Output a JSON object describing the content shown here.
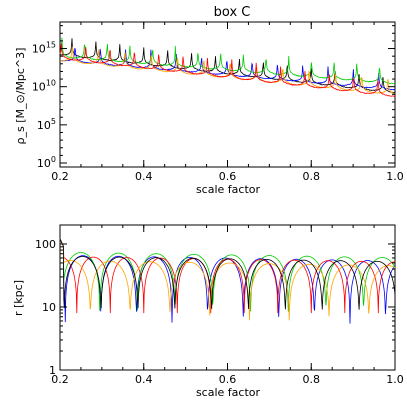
{
  "chart_data": [
    {
      "type": "line",
      "title": "box C",
      "xlabel": "scale factor",
      "ylabel": "ρ_s [M_⊙/Mpc^3]",
      "xlim": [
        0.2,
        1.0
      ],
      "ylim": [
        0.3,
        3e+18
      ],
      "yscale": "log",
      "xticks": [
        "0.2",
        "0.4",
        "0.6",
        "0.8",
        "1.0"
      ],
      "yticks": [
        {
          "base": "10",
          "exp": "0",
          "value": 1
        },
        {
          "base": "10",
          "exp": "5",
          "value": 100000
        },
        {
          "base": "10",
          "exp": "10",
          "value": 10000000000
        },
        {
          "base": "10",
          "exp": "15",
          "value": 1000000000000000
        }
      ],
      "series": [
        {
          "color": "#000000",
          "start": 1500000000000000.0,
          "end": 15000000000.0,
          "phase": 0.0,
          "dip_freq": 55,
          "dip_depth": 1.1
        },
        {
          "color": "#0000ff",
          "start": 220000000000000.0,
          "end": 30000000000.0,
          "phase": 0.3,
          "dip_freq": 52,
          "dip_depth": 1.0
        },
        {
          "color": "#00cc00",
          "start": 1000000000000000.0,
          "end": 300000000000.0,
          "phase": 0.7,
          "dip_freq": 58,
          "dip_depth": 1.2
        },
        {
          "color": "#ffa500",
          "start": 300000000000000.0,
          "end": 10000000000.0,
          "phase": 1.1,
          "dip_freq": 50,
          "dip_depth": 1.2
        },
        {
          "color": "#ff0000",
          "start": 500000000000000.0,
          "end": 5000000000.0,
          "phase": 1.6,
          "dip_freq": 54,
          "dip_depth": 1.1
        }
      ]
    },
    {
      "type": "line",
      "title": "",
      "xlabel": "scale factor",
      "ylabel": "r [kpc]",
      "xlim": [
        0.2,
        1.0
      ],
      "ylim": [
        1,
        200
      ],
      "yscale": "log",
      "xticks": [
        "0.2",
        "0.4",
        "0.6",
        "0.8",
        "1.0"
      ],
      "yticks": [
        {
          "label": "1",
          "value": 1
        },
        {
          "label": "10",
          "value": 10
        },
        {
          "label": "100",
          "value": 100
        }
      ],
      "series": [
        {
          "color": "#0000ff",
          "amp": 62,
          "min_r": 4,
          "period": 0.085,
          "phase": 0.0
        },
        {
          "color": "#00cc00",
          "amp": 68,
          "min_r": 6,
          "period": 0.09,
          "phase": 0.02
        },
        {
          "color": "#ff0000",
          "amp": 55,
          "min_r": 8,
          "period": 0.08,
          "phase": 0.04
        },
        {
          "color": "#ffa500",
          "amp": 50,
          "min_r": 5,
          "period": 0.095,
          "phase": 0.06
        },
        {
          "color": "#000000",
          "amp": 58,
          "min_r": 6,
          "period": 0.088,
          "phase": 0.01
        }
      ]
    }
  ]
}
